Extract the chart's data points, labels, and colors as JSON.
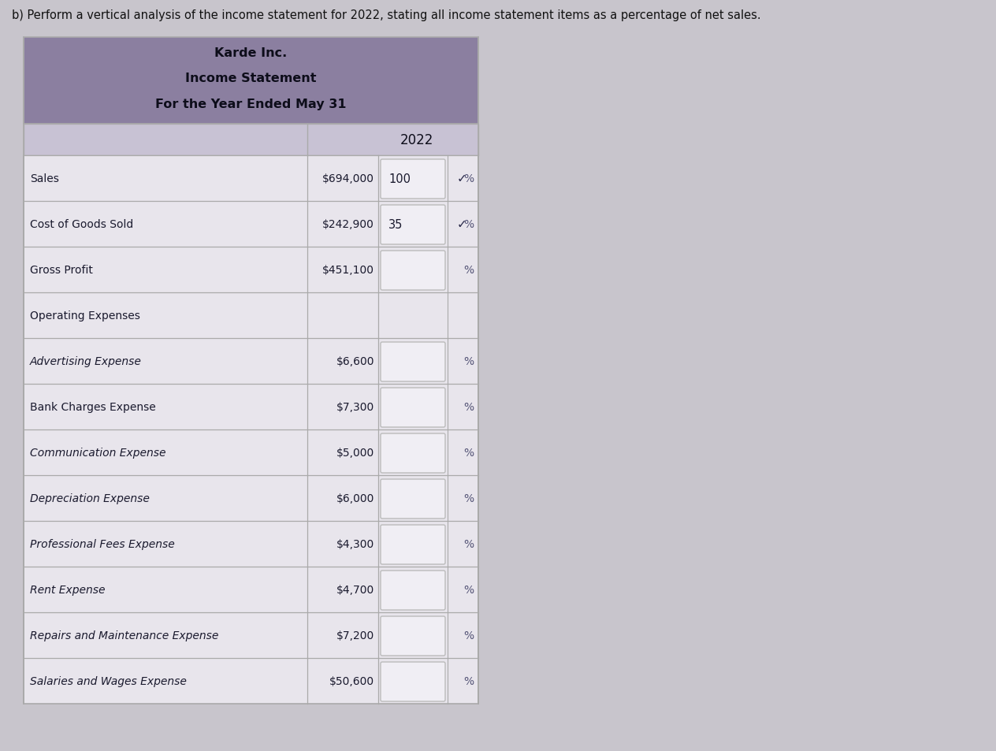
{
  "question_text": "b) Perform a vertical analysis of the income statement for 2022, stating all income statement items as a percentage of net sales.",
  "title_line1": "Karde Inc.",
  "title_line2": "Income Statement",
  "title_line3": "For the Year Ended May 31",
  "year_header": "2022",
  "rows": [
    {
      "label": "Sales",
      "amount": "$694,000",
      "pct_val": "100",
      "has_check": true,
      "has_input": true,
      "italic": false
    },
    {
      "label": "Cost of Goods Sold",
      "amount": "$242,900",
      "pct_val": "35",
      "has_check": true,
      "has_input": true,
      "italic": false
    },
    {
      "label": "Gross Profit",
      "amount": "$451,100",
      "pct_val": "",
      "has_check": false,
      "has_input": true,
      "italic": false
    },
    {
      "label": "Operating Expenses",
      "amount": "",
      "pct_val": "",
      "has_check": false,
      "has_input": false,
      "italic": false
    },
    {
      "label": "Advertising Expense",
      "amount": "$6,600",
      "pct_val": "",
      "has_check": false,
      "has_input": true,
      "italic": true
    },
    {
      "label": "Bank Charges Expense",
      "amount": "$7,300",
      "pct_val": "",
      "has_check": false,
      "has_input": true,
      "italic": false
    },
    {
      "label": "Communication Expense",
      "amount": "$5,000",
      "pct_val": "",
      "has_check": false,
      "has_input": true,
      "italic": true
    },
    {
      "label": "Depreciation Expense",
      "amount": "$6,000",
      "pct_val": "",
      "has_check": false,
      "has_input": true,
      "italic": true
    },
    {
      "label": "Professional Fees Expense",
      "amount": "$4,300",
      "pct_val": "",
      "has_check": false,
      "has_input": true,
      "italic": true
    },
    {
      "label": "Rent Expense",
      "amount": "$4,700",
      "pct_val": "",
      "has_check": false,
      "has_input": true,
      "italic": true
    },
    {
      "label": "Repairs and Maintenance Expense",
      "amount": "$7,200",
      "pct_val": "",
      "has_check": false,
      "has_input": true,
      "italic": true
    },
    {
      "label": "Salaries and Wages Expense",
      "amount": "$50,600",
      "pct_val": "",
      "has_check": false,
      "has_input": true,
      "italic": true
    }
  ],
  "header_bg": "#8b7fa0",
  "year_row_bg": "#c8c2d4",
  "table_bg": "#e8e5ec",
  "input_box_bg": "#f0eef4",
  "border_color": "#aaaaaa",
  "text_color": "#1a1a2e",
  "header_text_color": "#0d0d1a",
  "page_bg": "#c8c5cc",
  "check_color": "#2a2a4a",
  "pct_color": "#555577"
}
